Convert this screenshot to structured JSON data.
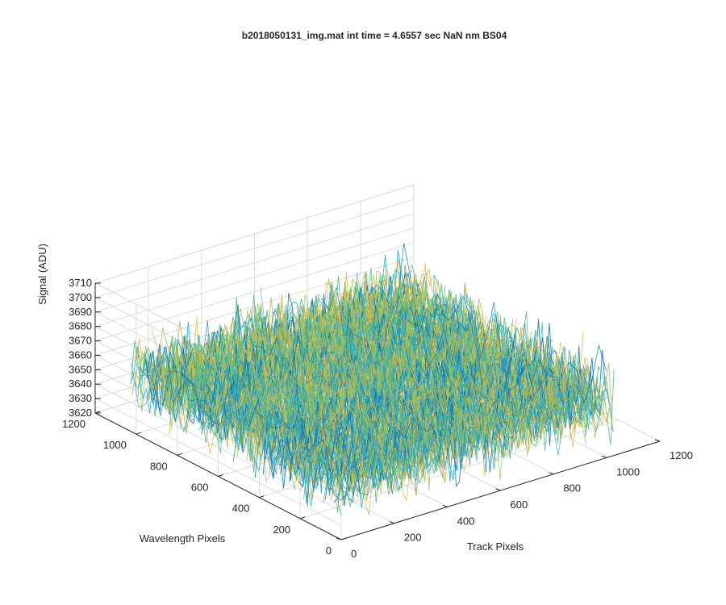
{
  "chart_data": {
    "type": "surface",
    "title": "b2018050131_img.mat int time = 4.6557 sec  NaN nm BS04",
    "xlabel": "Track Pixels",
    "ylabel": "Wavelength Pixels",
    "zlabel": "Signal (ADU)",
    "x_ticks": [
      "0",
      "200",
      "400",
      "600",
      "800",
      "1000",
      "1200"
    ],
    "y_ticks": [
      "0",
      "200",
      "400",
      "600",
      "800",
      "1000",
      "1200"
    ],
    "z_ticks": [
      "3620",
      "3630",
      "3640",
      "3650",
      "3660",
      "3670",
      "3680",
      "3690",
      "3700",
      "3710"
    ],
    "xlim": [
      0,
      1200
    ],
    "ylim": [
      0,
      1200
    ],
    "zlim": [
      3620,
      3710
    ],
    "x_data_range": [
      0,
      1024
    ],
    "y_data_range": [
      0,
      1024
    ],
    "signal_mean": 3660,
    "signal_range": [
      3627,
      3702
    ],
    "grid": true,
    "colormap": [
      "#0072bd",
      "#21a0c8",
      "#4cb88e",
      "#a8c055",
      "#e0b94a"
    ]
  }
}
